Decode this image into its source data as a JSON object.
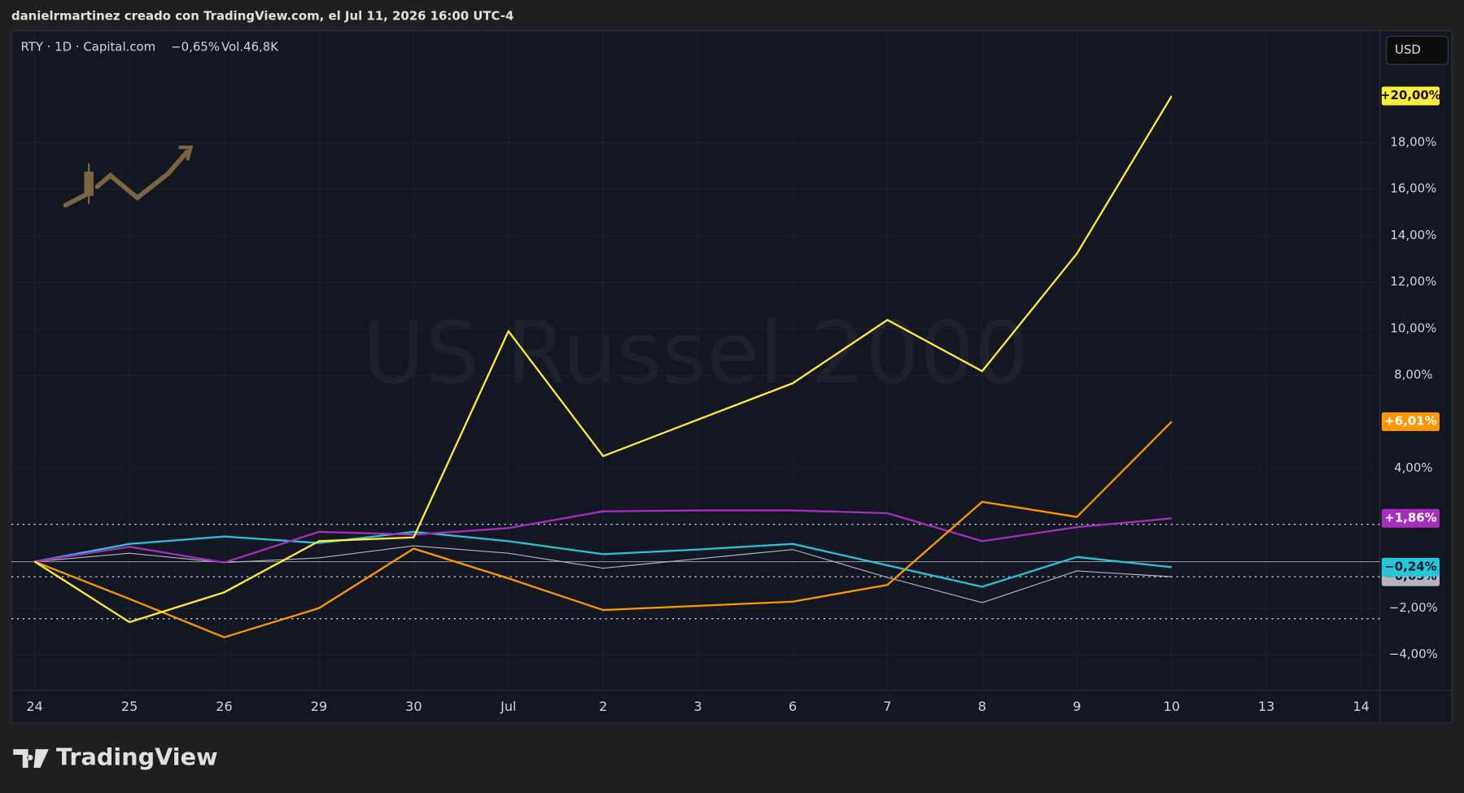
{
  "page": {
    "caption": "danielrmartinez creado con TradingView.com, el Jul 11, 2026 16:00 UTC-4",
    "brand": "TradingView"
  },
  "chart_data": {
    "type": "line",
    "symbol": "RTY · 1D · Capital.com",
    "change": "−0,65%",
    "volume": "Vol.46,8K",
    "watermark": "US Russel 2000",
    "currency": "USD",
    "categories": [
      "24",
      "25",
      "26",
      "29",
      "30",
      "Jul",
      "2",
      "3",
      "6",
      "7",
      "8",
      "9",
      "10",
      "13",
      "14"
    ],
    "series": [
      {
        "color": "#b2b5be",
        "values": [
          0,
          0.36,
          -0.04,
          0.16,
          0.68,
          0.36,
          -0.28,
          0.12,
          0.52,
          -0.68,
          -1.76,
          -0.4,
          -0.65,
          null,
          null
        ],
        "last_label": "−0,65%"
      },
      {
        "color": "#26c6da",
        "values": [
          0,
          0.76,
          1.08,
          0.8,
          1.28,
          0.88,
          0.32,
          0.52,
          0.76,
          -0.16,
          -1.08,
          0.2,
          -0.24,
          null,
          null
        ],
        "last_label": "−0,24%"
      },
      {
        "color": "#a92cc0",
        "values": [
          0,
          0.64,
          -0.04,
          1.28,
          1.16,
          1.44,
          2.16,
          2.2,
          2.2,
          2.08,
          0.88,
          1.48,
          1.86,
          null,
          null
        ],
        "last_label": "+1,86%"
      },
      {
        "color": "#ff9800",
        "values": [
          0,
          -1.6,
          -3.25,
          -2.0,
          0.56,
          -0.72,
          -2.08,
          -1.9,
          -1.72,
          -1.0,
          2.57,
          1.92,
          6.01,
          null,
          null
        ],
        "last_label": "+6,01%"
      },
      {
        "color": "#ffeb3b",
        "values": [
          0,
          -2.6,
          -1.32,
          0.88,
          1.04,
          9.9,
          4.53,
          6.1,
          7.66,
          10.38,
          8.18,
          13.23,
          20.0,
          null,
          null
        ],
        "last_label": "+20,00%"
      }
    ],
    "ylim": [
      -5.53,
      22.8
    ],
    "yticks": [
      {
        "value": -4,
        "label": "−4,00%"
      },
      {
        "value": -2,
        "label": "−2,00%"
      },
      {
        "value": 4,
        "label": "4,00%"
      },
      {
        "value": 8,
        "label": "8,00%"
      },
      {
        "value": 10,
        "label": "10,00%"
      },
      {
        "value": 12,
        "label": "12,00%"
      },
      {
        "value": 14,
        "label": "14,00%"
      },
      {
        "value": 16,
        "label": "16,00%"
      },
      {
        "value": 18,
        "label": "18,00%"
      }
    ],
    "hlines": [
      1.6,
      -2.45
    ],
    "grid": true
  }
}
